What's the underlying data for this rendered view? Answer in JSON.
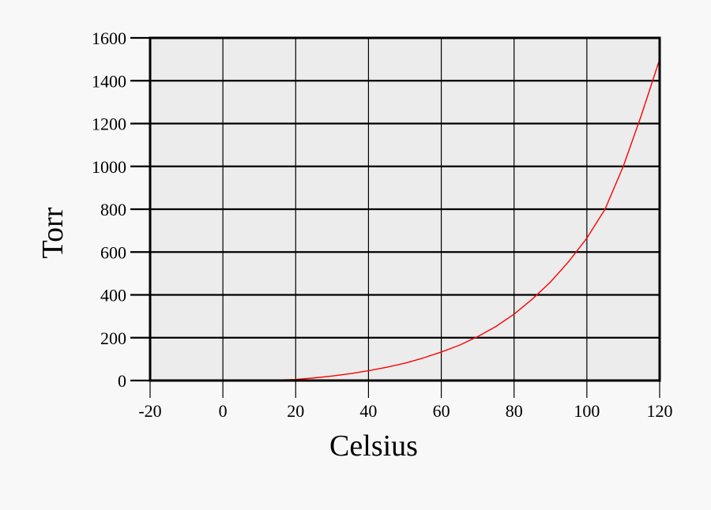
{
  "chart_data": {
    "type": "line",
    "title": "",
    "xlabel": "Celsius",
    "ylabel": "Torr",
    "xlim": [
      -20,
      120
    ],
    "ylim": [
      0,
      1600
    ],
    "x_ticks": [
      -20,
      0,
      20,
      40,
      60,
      80,
      100,
      120
    ],
    "x_tick_labels": [
      "-20",
      "0",
      "20",
      "40",
      "60",
      "80",
      "100",
      "120"
    ],
    "y_ticks": [
      0,
      200,
      400,
      600,
      800,
      1000,
      1200,
      1400,
      1600
    ],
    "y_tick_labels": [
      "0",
      "200",
      "400",
      "600",
      "800",
      "1000",
      "1200",
      "1400",
      "1600"
    ],
    "grid": true,
    "legend": "none",
    "colors": {
      "background": "#f8f8f8",
      "plot_background": "#ececec",
      "grid": "#000000",
      "line": "#ff0000"
    },
    "series": [
      {
        "x": [
          0,
          10,
          20,
          25,
          30,
          35,
          40,
          45,
          50,
          55,
          60,
          65,
          70,
          75,
          80,
          85,
          90,
          95,
          100,
          105,
          110,
          115,
          120
        ],
        "y": [
          0,
          0,
          5,
          12,
          21,
          32,
          46,
          62,
          81,
          105,
          133,
          165,
          205,
          252,
          310,
          380,
          460,
          555,
          665,
          800,
          1000,
          1240,
          1500
        ]
      }
    ]
  }
}
